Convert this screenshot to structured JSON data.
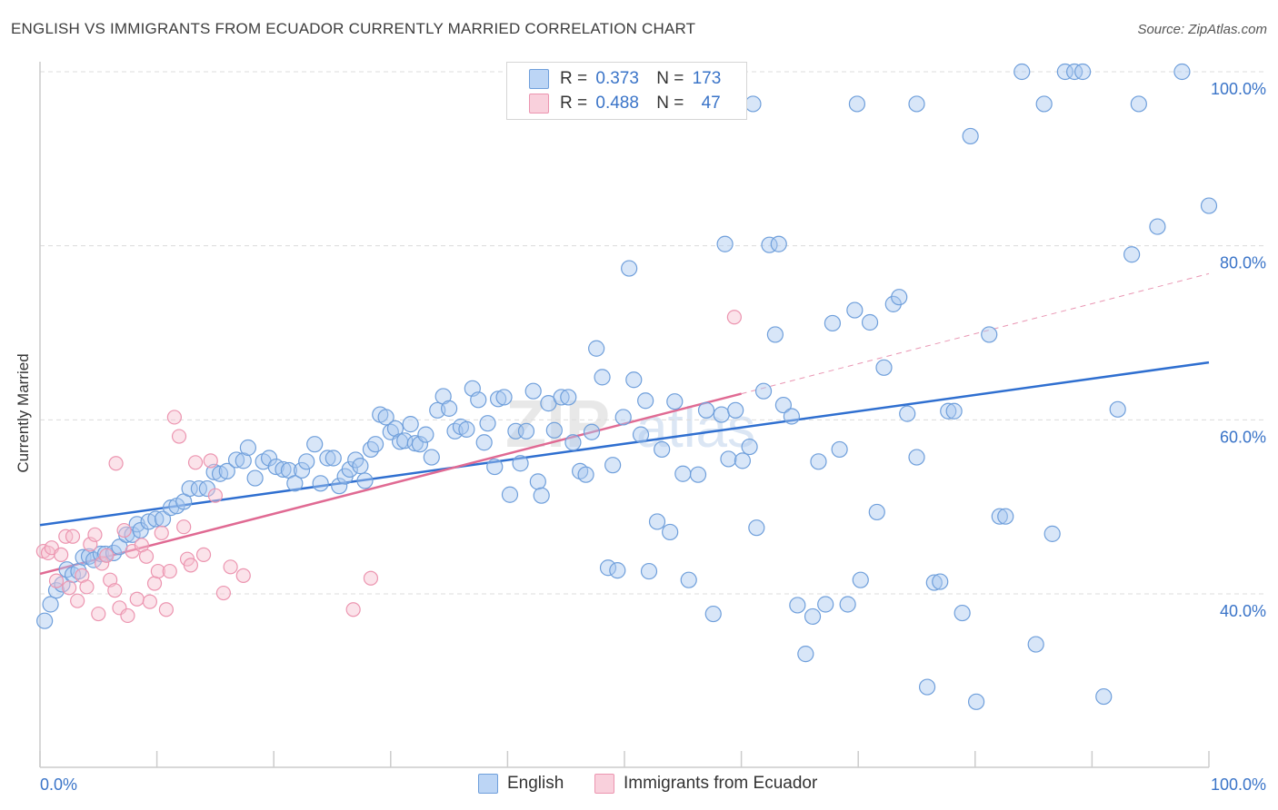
{
  "header": {
    "title": "ENGLISH VS IMMIGRANTS FROM ECUADOR CURRENTLY MARRIED CORRELATION CHART",
    "source": "Source: ZipAtlas.com"
  },
  "legend": {
    "rows": [
      {
        "r_label": "R =",
        "r_value": "0.373",
        "n_label": "N =",
        "n_value": "173"
      },
      {
        "r_label": "R =",
        "r_value": "0.488",
        "n_label": "N =",
        "n_value": "47"
      }
    ]
  },
  "colors": {
    "english_fill": "#a9c8f0",
    "english_stroke": "#6f9fdb",
    "english_line": "#2f6fd0",
    "ecuador_fill": "#f7c0d0",
    "ecuador_stroke": "#ec95b0",
    "ecuador_line": "#e06a93",
    "grid": "#dcdcdc",
    "tick_label": "#3a74c8"
  },
  "chart_data": {
    "type": "scatter",
    "title": "ENGLISH VS IMMIGRANTS FROM ECUADOR CURRENTLY MARRIED CORRELATION CHART",
    "xlabel": "",
    "ylabel": "Currently Married",
    "xlim": [
      0,
      100
    ],
    "ylim": [
      20,
      104
    ],
    "x_tick_labels": [
      "0.0%",
      "100.0%"
    ],
    "y_ticks": [
      40,
      60,
      80,
      100
    ],
    "y_tick_labels": [
      "40.0%",
      "60.0%",
      "80.0%",
      "100.0%"
    ],
    "grid": true,
    "legend_position": "top-center and bottom",
    "series": [
      {
        "name": "English",
        "R": 0.373,
        "N": 173,
        "trend": {
          "x": [
            0,
            100
          ],
          "y": [
            47.9,
            66.6
          ]
        },
        "points": [
          [
            0.4,
            36.9
          ],
          [
            0.9,
            38.8
          ],
          [
            1.4,
            40.4
          ],
          [
            1.9,
            41.1
          ],
          [
            2.3,
            42.8
          ],
          [
            2.8,
            42.2
          ],
          [
            3.3,
            42.6
          ],
          [
            3.7,
            44.2
          ],
          [
            4.2,
            44.3
          ],
          [
            4.6,
            43.9
          ],
          [
            5.2,
            44.6
          ],
          [
            5.6,
            44.6
          ],
          [
            6.3,
            44.7
          ],
          [
            6.8,
            45.4
          ],
          [
            7.4,
            46.8
          ],
          [
            7.9,
            46.8
          ],
          [
            8.3,
            48.0
          ],
          [
            8.6,
            47.3
          ],
          [
            9.3,
            48.3
          ],
          [
            9.9,
            48.6
          ],
          [
            10.5,
            48.6
          ],
          [
            11.2,
            49.9
          ],
          [
            11.7,
            50.1
          ],
          [
            12.3,
            50.6
          ],
          [
            12.8,
            52.1
          ],
          [
            13.6,
            52.1
          ],
          [
            14.3,
            52.1
          ],
          [
            14.9,
            54.0
          ],
          [
            15.4,
            53.8
          ],
          [
            16.0,
            54.1
          ],
          [
            16.8,
            55.4
          ],
          [
            17.4,
            55.3
          ],
          [
            17.8,
            56.8
          ],
          [
            18.4,
            53.3
          ],
          [
            19.1,
            55.2
          ],
          [
            19.6,
            55.6
          ],
          [
            20.2,
            54.6
          ],
          [
            20.8,
            54.3
          ],
          [
            21.3,
            54.2
          ],
          [
            21.8,
            52.7
          ],
          [
            22.4,
            54.2
          ],
          [
            22.8,
            55.2
          ],
          [
            23.5,
            57.2
          ],
          [
            24.0,
            52.7
          ],
          [
            24.6,
            55.6
          ],
          [
            25.1,
            55.6
          ],
          [
            25.6,
            52.4
          ],
          [
            26.1,
            53.5
          ],
          [
            26.5,
            54.3
          ],
          [
            27.0,
            55.4
          ],
          [
            27.4,
            54.7
          ],
          [
            27.8,
            53.0
          ],
          [
            28.3,
            56.6
          ],
          [
            28.7,
            57.2
          ],
          [
            29.1,
            60.6
          ],
          [
            29.6,
            60.3
          ],
          [
            30.0,
            58.6
          ],
          [
            30.4,
            59.0
          ],
          [
            30.8,
            57.5
          ],
          [
            31.2,
            57.6
          ],
          [
            31.7,
            59.5
          ],
          [
            32.1,
            57.3
          ],
          [
            32.5,
            57.2
          ],
          [
            33.0,
            58.3
          ],
          [
            33.5,
            55.7
          ],
          [
            34.0,
            61.1
          ],
          [
            34.5,
            62.7
          ],
          [
            35.0,
            61.3
          ],
          [
            35.5,
            58.7
          ],
          [
            36.0,
            59.2
          ],
          [
            36.5,
            58.9
          ],
          [
            37.0,
            63.6
          ],
          [
            37.5,
            62.3
          ],
          [
            38.0,
            57.4
          ],
          [
            38.3,
            59.6
          ],
          [
            38.9,
            54.6
          ],
          [
            39.2,
            62.4
          ],
          [
            39.7,
            62.6
          ],
          [
            40.2,
            51.4
          ],
          [
            40.7,
            58.7
          ],
          [
            41.1,
            55.0
          ],
          [
            41.6,
            58.7
          ],
          [
            42.2,
            63.3
          ],
          [
            42.6,
            52.9
          ],
          [
            42.9,
            51.3
          ],
          [
            43.5,
            61.9
          ],
          [
            44.0,
            58.8
          ],
          [
            44.6,
            62.6
          ],
          [
            45.2,
            62.6
          ],
          [
            45.6,
            57.4
          ],
          [
            46.2,
            54.1
          ],
          [
            46.7,
            53.7
          ],
          [
            47.2,
            58.6
          ],
          [
            47.6,
            68.2
          ],
          [
            48.1,
            64.9
          ],
          [
            48.6,
            43.0
          ],
          [
            49.0,
            54.8
          ],
          [
            49.4,
            42.7
          ],
          [
            49.9,
            60.3
          ],
          [
            50.4,
            77.4
          ],
          [
            50.8,
            64.6
          ],
          [
            51.4,
            58.3
          ],
          [
            51.8,
            62.2
          ],
          [
            52.1,
            42.6
          ],
          [
            52.8,
            48.3
          ],
          [
            53.2,
            56.6
          ],
          [
            53.9,
            47.1
          ],
          [
            54.3,
            62.1
          ],
          [
            55.0,
            53.8
          ],
          [
            55.5,
            41.6
          ],
          [
            56.3,
            53.7
          ],
          [
            57.0,
            61.1
          ],
          [
            57.6,
            37.7
          ],
          [
            58.3,
            60.6
          ],
          [
            58.9,
            55.5
          ],
          [
            59.5,
            61.1
          ],
          [
            60.1,
            55.3
          ],
          [
            60.7,
            56.9
          ],
          [
            61.3,
            47.6
          ],
          [
            61.9,
            63.3
          ],
          [
            62.4,
            80.1
          ],
          [
            62.9,
            69.8
          ],
          [
            63.6,
            61.7
          ],
          [
            64.3,
            60.4
          ],
          [
            64.8,
            38.7
          ],
          [
            65.5,
            33.1
          ],
          [
            66.1,
            37.4
          ],
          [
            66.6,
            55.2
          ],
          [
            67.2,
            38.8
          ],
          [
            67.8,
            71.1
          ],
          [
            68.4,
            56.6
          ],
          [
            69.1,
            38.8
          ],
          [
            69.7,
            72.6
          ],
          [
            70.2,
            41.6
          ],
          [
            71.0,
            71.2
          ],
          [
            71.6,
            49.4
          ],
          [
            72.2,
            66.0
          ],
          [
            73.0,
            73.3
          ],
          [
            73.5,
            74.1
          ],
          [
            74.2,
            60.7
          ],
          [
            75.0,
            55.7
          ],
          [
            75.9,
            29.3
          ],
          [
            76.5,
            41.3
          ],
          [
            77.0,
            41.4
          ],
          [
            77.7,
            61.0
          ],
          [
            78.2,
            61.0
          ],
          [
            78.9,
            37.8
          ],
          [
            79.6,
            92.6
          ],
          [
            80.1,
            27.6
          ],
          [
            81.2,
            69.8
          ],
          [
            82.1,
            48.9
          ],
          [
            82.6,
            48.9
          ],
          [
            84.0,
            100.0
          ],
          [
            85.2,
            34.2
          ],
          [
            86.6,
            46.9
          ],
          [
            87.7,
            100.0
          ],
          [
            88.5,
            100.0
          ],
          [
            89.2,
            100.0
          ],
          [
            91.0,
            28.2
          ],
          [
            92.2,
            61.2
          ],
          [
            93.4,
            79.0
          ],
          [
            95.6,
            82.2
          ],
          [
            97.7,
            100.0
          ],
          [
            100.0,
            84.6
          ],
          [
            69.9,
            96.3
          ],
          [
            75.0,
            96.3
          ],
          [
            85.9,
            96.3
          ],
          [
            94.0,
            96.3
          ],
          [
            61.0,
            96.3
          ],
          [
            63.2,
            80.2
          ],
          [
            41.9,
            96.3
          ],
          [
            55.3,
            96.3
          ],
          [
            58.6,
            80.2
          ]
        ]
      },
      {
        "name": "Immigrants from Ecuador",
        "R": 0.488,
        "N": 47,
        "trend": {
          "x": [
            0,
            60
          ],
          "y": [
            42.3,
            63.0
          ]
        },
        "trend_extension": {
          "x": [
            60,
            100
          ],
          "y": [
            63.0,
            76.8
          ]
        },
        "points": [
          [
            0.3,
            44.9
          ],
          [
            0.7,
            44.7
          ],
          [
            1.0,
            45.3
          ],
          [
            1.4,
            41.5
          ],
          [
            1.8,
            44.5
          ],
          [
            2.2,
            46.6
          ],
          [
            2.5,
            40.7
          ],
          [
            2.8,
            46.6
          ],
          [
            3.2,
            39.2
          ],
          [
            3.6,
            42.1
          ],
          [
            4.0,
            40.8
          ],
          [
            4.3,
            45.7
          ],
          [
            4.7,
            46.8
          ],
          [
            5.0,
            37.7
          ],
          [
            5.3,
            43.5
          ],
          [
            5.7,
            44.4
          ],
          [
            6.0,
            41.6
          ],
          [
            6.4,
            40.4
          ],
          [
            6.8,
            38.4
          ],
          [
            7.2,
            47.3
          ],
          [
            7.5,
            37.5
          ],
          [
            7.9,
            44.9
          ],
          [
            8.3,
            39.4
          ],
          [
            8.7,
            45.6
          ],
          [
            9.1,
            44.3
          ],
          [
            9.4,
            39.1
          ],
          [
            9.8,
            41.2
          ],
          [
            10.1,
            42.6
          ],
          [
            10.4,
            47.0
          ],
          [
            10.8,
            38.2
          ],
          [
            11.1,
            42.6
          ],
          [
            11.5,
            60.3
          ],
          [
            11.9,
            58.1
          ],
          [
            12.3,
            47.7
          ],
          [
            12.6,
            44.0
          ],
          [
            12.9,
            43.3
          ],
          [
            13.3,
            55.1
          ],
          [
            14.0,
            44.5
          ],
          [
            14.6,
            55.3
          ],
          [
            15.0,
            51.3
          ],
          [
            15.7,
            40.1
          ],
          [
            16.3,
            43.1
          ],
          [
            17.4,
            42.1
          ],
          [
            26.8,
            38.2
          ],
          [
            28.3,
            41.8
          ],
          [
            59.4,
            71.8
          ],
          [
            6.5,
            55.0
          ]
        ]
      }
    ]
  }
}
